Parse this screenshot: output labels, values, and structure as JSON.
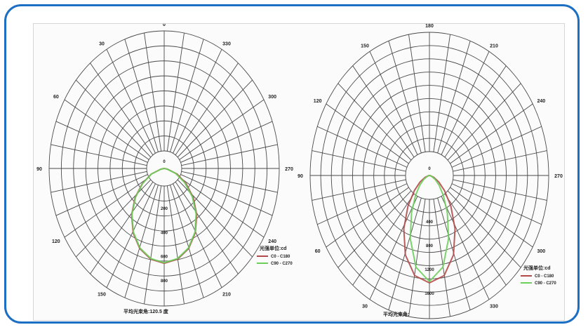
{
  "chart_data": [
    {
      "type": "polar-line",
      "title": "",
      "angle_labels": [
        {
          "deg": 0,
          "text": "0"
        },
        {
          "deg": 30,
          "text": "330"
        },
        {
          "deg": 60,
          "text": "300"
        },
        {
          "deg": 90,
          "text": "270"
        },
        {
          "deg": 120,
          "text": "240"
        },
        {
          "deg": 150,
          "text": "210"
        },
        {
          "deg": 210,
          "text": "150"
        },
        {
          "deg": 240,
          "text": "120"
        },
        {
          "deg": 270,
          "text": "90"
        },
        {
          "deg": 300,
          "text": "60"
        },
        {
          "deg": 330,
          "text": "30"
        }
      ],
      "radial_labels": [
        "0",
        "200",
        "400",
        "600",
        "800"
      ],
      "radial_max": 1000,
      "legend_title": "光强单位:cd",
      "legend_location": "bottom-right",
      "legend": [
        {
          "name": "C0 - C180",
          "color": "#b34a4a"
        },
        {
          "name": "C90 - C270",
          "color": "#6ccf5a"
        }
      ],
      "footer": "平均光束角:120.5 度",
      "series": [
        {
          "name": "C0 - C180",
          "color": "#b34a4a",
          "points": [
            [
              -90,
              0
            ],
            [
              -80,
              30
            ],
            [
              -70,
              120
            ],
            [
              -60,
              220
            ],
            [
              -50,
              330
            ],
            [
              -40,
              440
            ],
            [
              -30,
              540
            ],
            [
              -20,
              620
            ],
            [
              -10,
              670
            ],
            [
              0,
              690
            ],
            [
              10,
              670
            ],
            [
              20,
              620
            ],
            [
              30,
              540
            ],
            [
              40,
              440
            ],
            [
              50,
              330
            ],
            [
              60,
              220
            ],
            [
              70,
              120
            ],
            [
              80,
              30
            ],
            [
              90,
              0
            ]
          ]
        },
        {
          "name": "C90 - C270",
          "color": "#6ccf5a",
          "points": [
            [
              -90,
              0
            ],
            [
              -80,
              28
            ],
            [
              -70,
              118
            ],
            [
              -60,
              215
            ],
            [
              -50,
              325
            ],
            [
              -40,
              435
            ],
            [
              -30,
              535
            ],
            [
              -20,
              615
            ],
            [
              -10,
              665
            ],
            [
              0,
              685
            ],
            [
              10,
              665
            ],
            [
              20,
              615
            ],
            [
              30,
              535
            ],
            [
              40,
              432
            ],
            [
              50,
              318
            ],
            [
              60,
              205
            ],
            [
              70,
              105
            ],
            [
              80,
              22
            ],
            [
              90,
              0
            ]
          ]
        }
      ]
    },
    {
      "type": "polar-line",
      "title": "",
      "angle_labels": [
        {
          "deg": 0,
          "text": "180"
        },
        {
          "deg": 30,
          "text": "210"
        },
        {
          "deg": 60,
          "text": "240"
        },
        {
          "deg": 90,
          "text": "270"
        },
        {
          "deg": 120,
          "text": "300"
        },
        {
          "deg": 150,
          "text": "330"
        },
        {
          "deg": 210,
          "text": "30"
        },
        {
          "deg": 240,
          "text": "60"
        },
        {
          "deg": 270,
          "text": "90"
        },
        {
          "deg": 300,
          "text": "120"
        },
        {
          "deg": 330,
          "text": "150"
        }
      ],
      "radial_labels": [
        "0",
        "400",
        "800",
        "1200",
        "1600"
      ],
      "radial_max": 2000,
      "legend_title": "光强单位:cd",
      "legend_location": "bottom-right",
      "legend": [
        {
          "name": "C0 - C180",
          "color": "#b34a4a"
        },
        {
          "name": "C90 - C270",
          "color": "#6ccf5a"
        }
      ],
      "footer": "平均光束角:",
      "series": [
        {
          "name": "C0 - C180",
          "color": "#b34a4a",
          "points": [
            [
              -90,
              0
            ],
            [
              -80,
              20
            ],
            [
              -70,
              80
            ],
            [
              -60,
              180
            ],
            [
              -50,
              330
            ],
            [
              -40,
              560
            ],
            [
              -30,
              860
            ],
            [
              -20,
              1180
            ],
            [
              -10,
              1420
            ],
            [
              0,
              1500
            ],
            [
              10,
              1420
            ],
            [
              20,
              1180
            ],
            [
              30,
              860
            ],
            [
              40,
              560
            ],
            [
              50,
              330
            ],
            [
              60,
              180
            ],
            [
              70,
              80
            ],
            [
              80,
              20
            ],
            [
              90,
              0
            ]
          ]
        },
        {
          "name": "C90 - C270",
          "color": "#6ccf5a",
          "points": [
            [
              -90,
              0
            ],
            [
              -80,
              12
            ],
            [
              -70,
              45
            ],
            [
              -60,
              110
            ],
            [
              -50,
              210
            ],
            [
              -40,
              360
            ],
            [
              -30,
              600
            ],
            [
              -20,
              940
            ],
            [
              -10,
              1300
            ],
            [
              0,
              1480
            ],
            [
              10,
              1300
            ],
            [
              20,
              940
            ],
            [
              30,
              600
            ],
            [
              40,
              360
            ],
            [
              50,
              210
            ],
            [
              60,
              110
            ],
            [
              70,
              45
            ],
            [
              80,
              12
            ],
            [
              90,
              0
            ]
          ]
        }
      ]
    }
  ]
}
